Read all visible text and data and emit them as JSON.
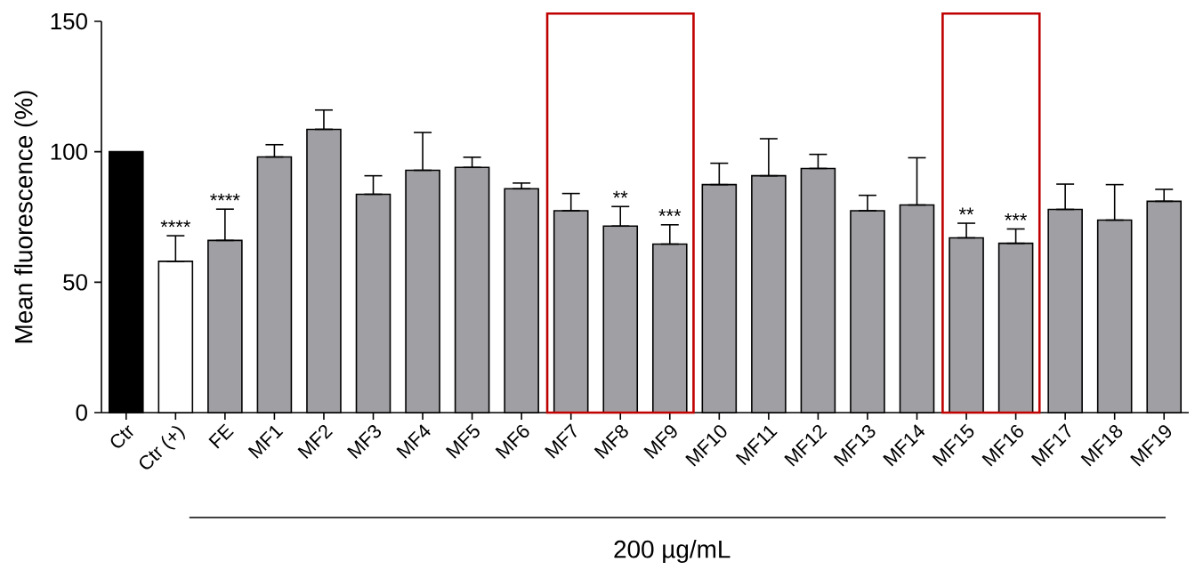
{
  "chart_data": {
    "type": "bar",
    "ylabel": "Mean fluorescence (%)",
    "categories": [
      "Ctr",
      "Ctr (+)",
      "FE",
      "MF1",
      "MF2",
      "MF3",
      "MF4",
      "MF5",
      "MF6",
      "MF7",
      "MF8",
      "MF9",
      "MF10",
      "MF11",
      "MF12",
      "MF13",
      "MF14",
      "MF15",
      "MF16",
      "MF17",
      "MF18",
      "MF19"
    ],
    "values": [
      100,
      58,
      66,
      98,
      108.6,
      83.7,
      92.9,
      94,
      85.8,
      77.4,
      71.5,
      64.6,
      87.4,
      90.8,
      93.6,
      77.4,
      79.6,
      67,
      64.9,
      77.9,
      73.8,
      81
    ],
    "colors": [
      "#000000",
      "#ffffff",
      "#a0a0a4",
      "#a0a0a4",
      "#a0a0a4",
      "#a0a0a4",
      "#a0a0a4",
      "#a0a0a4",
      "#a0a0a4",
      "#a0a0a4",
      "#a0a0a4",
      "#a0a0a4",
      "#a0a0a4",
      "#a0a0a4",
      "#a0a0a4",
      "#a0a0a4",
      "#a0a0a4",
      "#a0a0a4",
      "#a0a0a4",
      "#a0a0a4",
      "#a0a0a4",
      "#a0a0a4"
    ],
    "errors": [
      null,
      [
        58,
        67.8
      ],
      [
        66,
        78
      ],
      [
        98,
        102.7
      ],
      [
        108.6,
        116
      ],
      [
        83.7,
        90.8
      ],
      [
        92.9,
        107.4
      ],
      [
        94,
        97.9
      ],
      [
        85.8,
        88
      ],
      [
        77.4,
        84
      ],
      [
        71.5,
        79
      ],
      [
        64.6,
        72
      ],
      [
        87.4,
        95.6
      ],
      [
        90.8,
        105
      ],
      [
        93.6,
        99
      ],
      [
        77.4,
        83.3
      ],
      [
        79.6,
        97.7
      ],
      [
        67,
        72.6
      ],
      [
        64.9,
        70.4
      ],
      [
        77.9,
        87.6
      ],
      [
        73.8,
        87.4
      ],
      [
        81,
        85.6
      ]
    ],
    "ylim": [
      0,
      150
    ],
    "yticks": [
      0,
      50,
      100,
      150
    ],
    "annotations": [
      {
        "text": "****",
        "x": "Ctr (+)",
        "y": 67.8
      },
      {
        "text": "****",
        "x": "FE",
        "y": 78
      },
      {
        "text": "**",
        "x": "MF8",
        "y": 79
      },
      {
        "text": "***",
        "x": "MF9",
        "y": 72
      },
      {
        "text": "**",
        "x": "MF15",
        "y": 72.6
      },
      {
        "text": "***",
        "x": "MF16",
        "y": 70.4
      },
      "200 µg/mL"
    ]
  }
}
